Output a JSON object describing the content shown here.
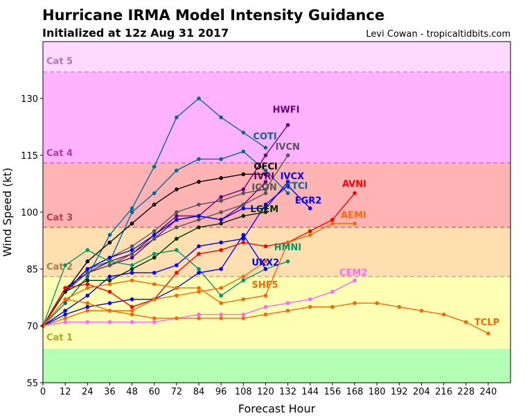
{
  "chart_data": {
    "type": "line",
    "title": "Hurricane IRMA Model Intensity Guidance",
    "subtitle": "Initialized at 12z Aug 31 2017",
    "credit": "Levi Cowan - tropicaltidbits.com",
    "xlabel": "Forecast Hour",
    "ylabel": "Wind Speed (kt)",
    "xlim": [
      0,
      252
    ],
    "ylim": [
      55,
      145
    ],
    "xticks": [
      0,
      12,
      24,
      36,
      48,
      60,
      72,
      84,
      96,
      108,
      120,
      132,
      144,
      156,
      168,
      180,
      192,
      204,
      216,
      228,
      240
    ],
    "yticks": [
      55,
      70,
      85,
      100,
      115,
      130
    ],
    "categories": [
      {
        "name": "",
        "min": 55,
        "max": 64,
        "color": "#b3ffb3"
      },
      {
        "name": "Cat 1",
        "min": 64,
        "max": 83,
        "color": "#ffffb3",
        "label_color": "#a6a633"
      },
      {
        "name": "Cat 2",
        "min": 83,
        "max": 96,
        "color": "#ffdfb0",
        "label_color": "#a67c4d"
      },
      {
        "name": "Cat 3",
        "min": 96,
        "max": 113,
        "color": "#ffb3b3",
        "label_color": "#b34040"
      },
      {
        "name": "Cat 4",
        "min": 113,
        "max": 137,
        "color": "#ffb3ff",
        "label_color": "#a640a6"
      },
      {
        "name": "Cat 5",
        "min": 137,
        "max": 145,
        "color": "#ffd9ff",
        "label_color": "#b373b3"
      }
    ],
    "series": [
      {
        "name": "COTI",
        "color": "#00699a",
        "x": [
          0,
          12,
          24,
          36,
          48,
          60,
          72,
          84,
          96,
          108,
          120
        ],
        "y": [
          70,
          76,
          83,
          94,
          101,
          112,
          125,
          130,
          125,
          121,
          117
        ]
      },
      {
        "name": "CTCI",
        "color": "#00699a",
        "x": [
          0,
          12,
          24,
          36,
          48,
          60,
          72,
          84,
          96,
          108,
          120,
          132
        ],
        "y": [
          70,
          79,
          85,
          87,
          100,
          105,
          111,
          114,
          114,
          116,
          111,
          105
        ]
      },
      {
        "name": "HWFI",
        "color": "#660080",
        "x": [
          0,
          12,
          24,
          36,
          48,
          60,
          72,
          84,
          96,
          108,
          120,
          132
        ],
        "y": [
          70,
          80,
          84,
          87,
          89,
          94,
          99,
          99,
          104,
          106,
          115,
          123
        ]
      },
      {
        "name": "IVCN",
        "color": "#555555",
        "x": [
          0,
          12,
          24,
          36,
          48,
          60,
          72,
          84,
          96,
          108,
          120,
          132
        ],
        "y": [
          70,
          79,
          85,
          88,
          91,
          95,
          100,
          102,
          103,
          105,
          106,
          115
        ]
      },
      {
        "name": "OFCI",
        "color": "#000000",
        "x": [
          0,
          12,
          24,
          36,
          48,
          60,
          72,
          84,
          96,
          108,
          120
        ],
        "y": [
          70,
          79,
          87,
          92,
          97,
          102,
          106,
          108,
          109,
          110,
          110
        ]
      },
      {
        "name": "IVRI",
        "color": "#660080",
        "x": [
          0,
          12,
          24,
          36,
          48,
          60,
          72,
          84,
          96,
          108,
          120
        ],
        "y": [
          70,
          79,
          84,
          86,
          88,
          93,
          98,
          99,
          98,
          102,
          108
        ]
      },
      {
        "name": "ICON",
        "color": "#555555",
        "x": [
          0,
          12,
          24,
          36,
          48,
          60,
          72,
          84,
          96,
          108,
          120
        ],
        "y": [
          70,
          79,
          84,
          86,
          89,
          93,
          96,
          98,
          100,
          102,
          105
        ]
      },
      {
        "name": "IVCX",
        "color": "#0000ff",
        "x": [
          0,
          12,
          24,
          36,
          48,
          60,
          72,
          84,
          96,
          108,
          120,
          132
        ],
        "y": [
          70,
          79,
          85,
          88,
          90,
          94,
          98,
          99,
          98,
          101,
          101,
          108
        ]
      },
      {
        "name": "EGR2",
        "color": "#0000ff",
        "x": [
          0,
          12,
          24,
          36,
          48,
          60,
          72,
          84,
          96,
          108,
          120,
          132,
          144
        ],
        "y": [
          70,
          74,
          78,
          83,
          84,
          84,
          86,
          91,
          92,
          93,
          102,
          107,
          101
        ]
      },
      {
        "name": "LGEM",
        "color": "#003300",
        "x": [
          0,
          12,
          24,
          36,
          48,
          60,
          72,
          84,
          96,
          108,
          120
        ],
        "y": [
          70,
          79,
          82,
          82,
          85,
          88,
          93,
          96,
          97,
          99,
          100
        ]
      },
      {
        "name": "HMNI",
        "color": "#009966",
        "x": [
          0,
          12,
          24,
          36,
          48,
          60,
          72,
          84,
          96,
          108,
          120,
          132
        ],
        "y": [
          70,
          86,
          90,
          87,
          86,
          89,
          90,
          85,
          78,
          82,
          85,
          87
        ]
      },
      {
        "name": "UKX2",
        "color": "#0000ff",
        "x": [
          0,
          12,
          24,
          36,
          48,
          60,
          72,
          84,
          96,
          108,
          120
        ],
        "y": [
          70,
          73,
          75,
          76,
          77,
          77,
          80,
          84,
          85,
          94,
          85
        ]
      },
      {
        "name": "AVNI",
        "color": "#ff0000",
        "x": [
          0,
          12,
          24,
          36,
          48,
          60,
          72,
          84,
          96,
          108,
          120,
          132,
          144,
          156,
          168
        ],
        "y": [
          70,
          80,
          81,
          79,
          75,
          77,
          84,
          89,
          90,
          92,
          91,
          92,
          95,
          98,
          105
        ]
      },
      {
        "name": "AEMI",
        "color": "#ff6600",
        "x": [
          0,
          12,
          24,
          36,
          48,
          60,
          72,
          84,
          96,
          108,
          120,
          132,
          144,
          156,
          168
        ],
        "y": [
          70,
          77,
          80,
          81,
          82,
          81,
          80,
          80,
          76,
          77,
          78,
          92,
          94,
          97,
          97
        ]
      },
      {
        "name": "SHF5",
        "color": "#ff6600",
        "x": [
          0,
          12,
          24,
          36,
          48,
          60,
          72,
          84,
          96,
          108,
          120
        ],
        "y": [
          70,
          77,
          76,
          74,
          74,
          77,
          78,
          79,
          80,
          83,
          87
        ]
      },
      {
        "name": "CEM2",
        "color": "#ff66ff",
        "x": [
          0,
          12,
          24,
          36,
          48,
          60,
          72,
          84,
          96,
          108,
          120,
          132,
          144,
          156,
          168
        ],
        "y": [
          70,
          71,
          71,
          71,
          71,
          71,
          72,
          73,
          73,
          73,
          75,
          76,
          77,
          79,
          82
        ]
      },
      {
        "name": "TCLP",
        "color": "#ff6600",
        "x": [
          0,
          12,
          24,
          36,
          48,
          60,
          72,
          84,
          96,
          108,
          120,
          132,
          144,
          156,
          168,
          180,
          192,
          204,
          216,
          228,
          240
        ],
        "y": [
          70,
          72,
          74,
          74,
          73,
          72,
          72,
          72,
          72,
          72,
          73,
          74,
          75,
          75,
          76,
          76,
          75,
          74,
          73,
          71,
          68
        ]
      }
    ]
  }
}
